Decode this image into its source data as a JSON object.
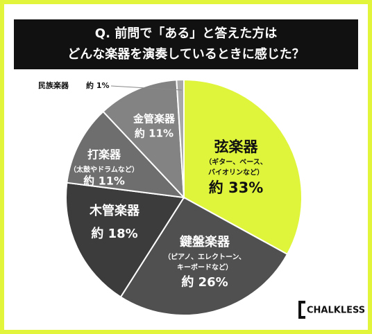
{
  "chart_data": {
    "type": "pie",
    "title": [
      "Q. 前問で「ある」と答えた方は",
      "どんな楽器を演奏しているときに感じた？"
    ],
    "categories": [
      "弦楽器",
      "鍵盤楽器",
      "木管楽器",
      "打楽器",
      "金管楽器",
      "民族楽器"
    ],
    "values": [
      33,
      26,
      18,
      11,
      11,
      1
    ],
    "value_labels": [
      "約 33%",
      "約 26%",
      "約 18%",
      "約 11%",
      "約 11%",
      "約 1%"
    ],
    "notes": [
      [
        "（ギター、ベース、",
        "バイオリンなど）"
      ],
      [
        "（ピアノ、エレクトーン、",
        "キーボードなど）"
      ],
      null,
      [
        "（太鼓やドラムなど）"
      ],
      null,
      null
    ],
    "colors": [
      "#dff53c",
      "#505050",
      "#3c3c3c",
      "#6e6e6e",
      "#838383",
      "#a8a8a8"
    ],
    "brand": "CHALKLESS"
  }
}
